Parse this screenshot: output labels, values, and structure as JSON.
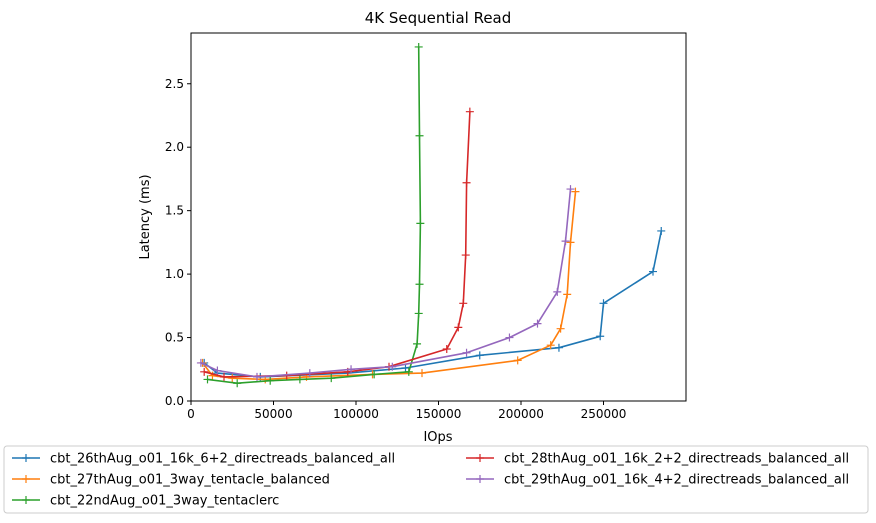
{
  "chart_data": {
    "type": "line",
    "title": "4K  Sequential Read",
    "xlabel": "IOps",
    "ylabel": "Latency (ms)",
    "xlim": [
      0,
      300000
    ],
    "ylim": [
      0,
      2.9
    ],
    "xticks": [
      0,
      50000,
      100000,
      150000,
      200000,
      250000
    ],
    "xtick_labels": [
      "0",
      "50000",
      "100000",
      "150000",
      "200000",
      "250000"
    ],
    "yticks": [
      0,
      0.5,
      1.0,
      1.5,
      2.0,
      2.5
    ],
    "ytick_labels": [
      "0.0",
      "0.5",
      "1.0",
      "1.5",
      "2.0",
      "2.5"
    ],
    "grid": false,
    "legend_position": "bottom, outside plot area, 2 columns",
    "marker": "plus",
    "series": [
      {
        "name": "cbt_26thAug_o01_16k_6+2_directreads_balanced_all",
        "color": "#1f77b4",
        "x": [
          8000,
          16000,
          42000,
          95000,
          130000,
          175000,
          223000,
          248000,
          250000,
          280000,
          285000
        ],
        "y": [
          0.3,
          0.22,
          0.19,
          0.22,
          0.26,
          0.36,
          0.42,
          0.51,
          0.77,
          1.02,
          1.34
        ]
      },
      {
        "name": "cbt_27thAug_o01_3way_tentacle_balanced",
        "color": "#ff7f0e",
        "x": [
          7000,
          13000,
          25000,
          45000,
          70000,
          110000,
          140000,
          198000,
          218000,
          224000,
          228000,
          230000,
          233000
        ],
        "y": [
          0.3,
          0.2,
          0.18,
          0.17,
          0.19,
          0.21,
          0.22,
          0.32,
          0.44,
          0.57,
          0.84,
          1.25,
          1.65
        ]
      },
      {
        "name": "cbt_22ndAug_o01_3way_tentaclerc",
        "color": "#2ca02c",
        "x": [
          10000,
          28000,
          48000,
          66000,
          85000,
          111000,
          132000,
          137000,
          138000,
          138500,
          139000,
          138500,
          138000
        ],
        "y": [
          0.17,
          0.14,
          0.16,
          0.17,
          0.18,
          0.21,
          0.23,
          0.45,
          0.69,
          0.92,
          1.4,
          2.09,
          2.79
        ]
      },
      {
        "name": "cbt_28thAug_o01_16k_2+2_directreads_balanced_all",
        "color": "#d62728",
        "x": [
          8000,
          20000,
          58000,
          95000,
          120000,
          155000,
          162000,
          165000,
          166500,
          167000,
          169000
        ],
        "y": [
          0.23,
          0.19,
          0.2,
          0.23,
          0.27,
          0.41,
          0.58,
          0.77,
          1.15,
          1.72,
          2.28
        ]
      },
      {
        "name": "cbt_29thAug_o01_16k_4+2_directreads_balanced_all",
        "color": "#9467bd",
        "x": [
          6000,
          16000,
          40000,
          72000,
          97000,
          122000,
          167000,
          193000,
          210000,
          222000,
          227000,
          230000
        ],
        "y": [
          0.3,
          0.24,
          0.19,
          0.22,
          0.25,
          0.27,
          0.38,
          0.5,
          0.61,
          0.86,
          1.26,
          1.67
        ]
      }
    ]
  }
}
